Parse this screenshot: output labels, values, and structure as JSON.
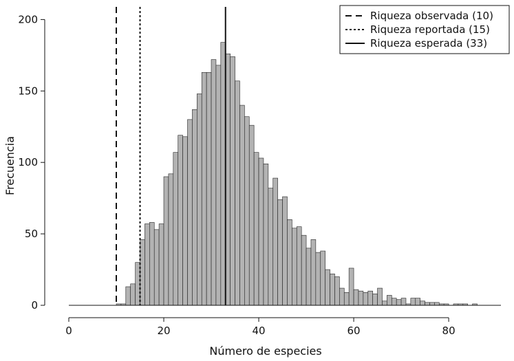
{
  "chart_data": {
    "type": "bar",
    "title": "",
    "xlabel": "Número de especies",
    "ylabel": "Frecuencia",
    "xlim": [
      0,
      91
    ],
    "ylim": [
      0,
      205
    ],
    "x_ticks": [
      0,
      20,
      40,
      60,
      80
    ],
    "y_ticks": [
      0,
      50,
      100,
      150,
      200
    ],
    "grid": false,
    "legend_position": "top-right",
    "bar_color": "#b3b3b3",
    "bin_width": 1,
    "bins": [
      {
        "x": 10,
        "y": 1
      },
      {
        "x": 11,
        "y": 1
      },
      {
        "x": 12,
        "y": 13
      },
      {
        "x": 13,
        "y": 15
      },
      {
        "x": 14,
        "y": 30
      },
      {
        "x": 15,
        "y": 46
      },
      {
        "x": 16,
        "y": 57
      },
      {
        "x": 17,
        "y": 58
      },
      {
        "x": 18,
        "y": 53
      },
      {
        "x": 19,
        "y": 57
      },
      {
        "x": 20,
        "y": 90
      },
      {
        "x": 21,
        "y": 92
      },
      {
        "x": 22,
        "y": 107
      },
      {
        "x": 23,
        "y": 119
      },
      {
        "x": 24,
        "y": 118
      },
      {
        "x": 25,
        "y": 130
      },
      {
        "x": 26,
        "y": 137
      },
      {
        "x": 27,
        "y": 148
      },
      {
        "x": 28,
        "y": 163
      },
      {
        "x": 29,
        "y": 163
      },
      {
        "x": 30,
        "y": 172
      },
      {
        "x": 31,
        "y": 168
      },
      {
        "x": 32,
        "y": 184
      },
      {
        "x": 33,
        "y": 176
      },
      {
        "x": 34,
        "y": 174
      },
      {
        "x": 35,
        "y": 157
      },
      {
        "x": 36,
        "y": 140
      },
      {
        "x": 37,
        "y": 132
      },
      {
        "x": 38,
        "y": 126
      },
      {
        "x": 39,
        "y": 107
      },
      {
        "x": 40,
        "y": 103
      },
      {
        "x": 41,
        "y": 99
      },
      {
        "x": 42,
        "y": 82
      },
      {
        "x": 43,
        "y": 89
      },
      {
        "x": 44,
        "y": 74
      },
      {
        "x": 45,
        "y": 76
      },
      {
        "x": 46,
        "y": 60
      },
      {
        "x": 47,
        "y": 54
      },
      {
        "x": 48,
        "y": 55
      },
      {
        "x": 49,
        "y": 49
      },
      {
        "x": 50,
        "y": 40
      },
      {
        "x": 51,
        "y": 46
      },
      {
        "x": 52,
        "y": 37
      },
      {
        "x": 53,
        "y": 38
      },
      {
        "x": 54,
        "y": 25
      },
      {
        "x": 55,
        "y": 22
      },
      {
        "x": 56,
        "y": 20
      },
      {
        "x": 57,
        "y": 12
      },
      {
        "x": 58,
        "y": 9
      },
      {
        "x": 59,
        "y": 26
      },
      {
        "x": 60,
        "y": 11
      },
      {
        "x": 61,
        "y": 10
      },
      {
        "x": 62,
        "y": 9
      },
      {
        "x": 63,
        "y": 10
      },
      {
        "x": 64,
        "y": 8
      },
      {
        "x": 65,
        "y": 12
      },
      {
        "x": 66,
        "y": 3
      },
      {
        "x": 67,
        "y": 7
      },
      {
        "x": 68,
        "y": 5
      },
      {
        "x": 69,
        "y": 4
      },
      {
        "x": 70,
        "y": 5
      },
      {
        "x": 71,
        "y": 1
      },
      {
        "x": 72,
        "y": 5
      },
      {
        "x": 73,
        "y": 5
      },
      {
        "x": 74,
        "y": 3
      },
      {
        "x": 75,
        "y": 2
      },
      {
        "x": 76,
        "y": 2
      },
      {
        "x": 77,
        "y": 2
      },
      {
        "x": 78,
        "y": 1
      },
      {
        "x": 79,
        "y": 1
      },
      {
        "x": 80,
        "y": 0
      },
      {
        "x": 81,
        "y": 1
      },
      {
        "x": 82,
        "y": 1
      },
      {
        "x": 83,
        "y": 1
      },
      {
        "x": 84,
        "y": 0
      },
      {
        "x": 85,
        "y": 1
      }
    ],
    "reference_lines": [
      {
        "name": "Riqueza observada (10)",
        "x": 10,
        "style": "dashed"
      },
      {
        "name": "Riqueza reportada (15)",
        "x": 15,
        "style": "dotted"
      },
      {
        "name": "Riqueza esperada (33)",
        "x": 33,
        "style": "solid"
      }
    ]
  }
}
